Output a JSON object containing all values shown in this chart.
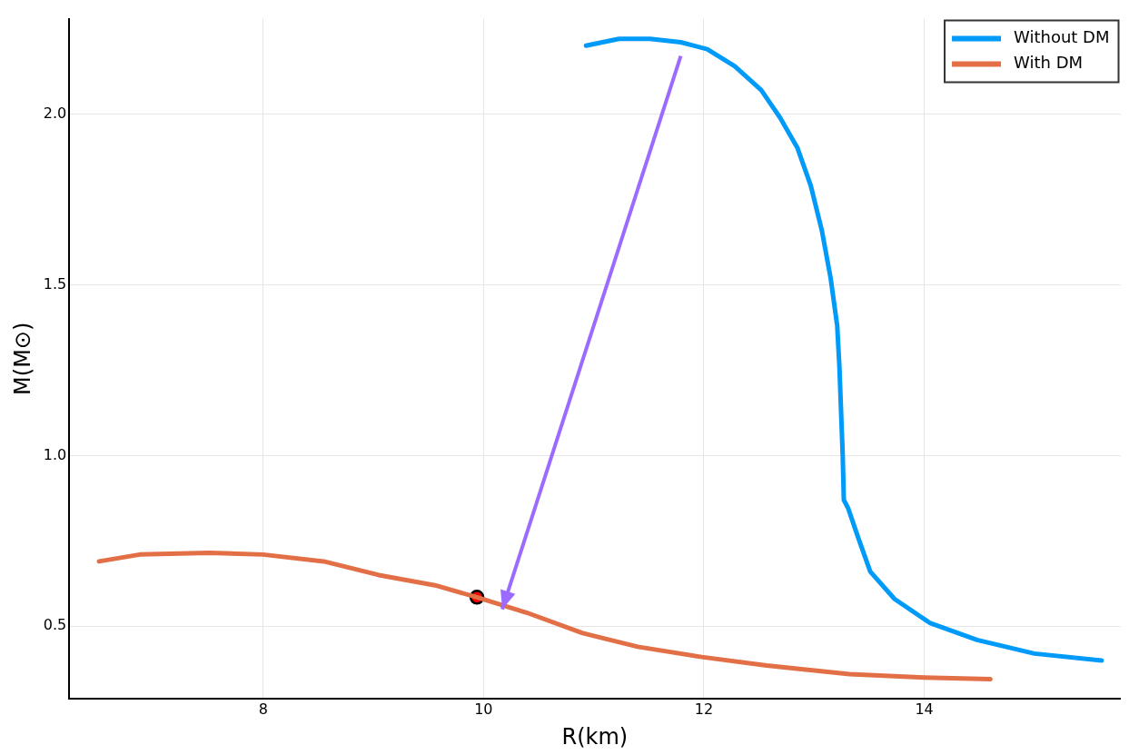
{
  "chart_data": {
    "type": "line",
    "xlabel": "R(km)",
    "ylabel": "M(M⊙)",
    "xlim": [
      6.24,
      15.78
    ],
    "ylim": [
      0.288,
      2.279
    ],
    "xticks": [
      8,
      10,
      12,
      14
    ],
    "yticks": [
      0.5,
      {
        "value": 1,
        "label": "1.0"
      },
      1.5,
      {
        "value": 2,
        "label": "2.0"
      }
    ],
    "grid": true,
    "legend": "top right",
    "marker": "none",
    "line_style": "solid",
    "series": [
      {
        "name": "Without DM",
        "color": "#009af9",
        "x": [
          10.93,
          11.23,
          11.51,
          11.79,
          12.03,
          12.28,
          12.52,
          12.69,
          12.85,
          12.97,
          13.07,
          13.15,
          13.21,
          13.23,
          13.26,
          13.27,
          13.31,
          13.4,
          13.51,
          13.73,
          14.05,
          14.48,
          15.0,
          15.61
        ],
        "values": [
          2.2,
          2.22,
          2.22,
          2.21,
          2.19,
          2.14,
          2.07,
          1.99,
          1.9,
          1.79,
          1.66,
          1.52,
          1.38,
          1.26,
          1.0,
          0.87,
          0.845,
          0.76,
          0.66,
          0.58,
          0.51,
          0.46,
          0.42,
          0.4
        ]
      },
      {
        "name": "With DM",
        "color": "#e26f46",
        "x": [
          6.51,
          6.88,
          7.51,
          8.0,
          8.55,
          9.05,
          9.56,
          9.94,
          10.39,
          10.9,
          11.4,
          11.98,
          12.57,
          13.32,
          14.0,
          14.6
        ],
        "values": [
          0.69,
          0.71,
          0.715,
          0.71,
          0.69,
          0.65,
          0.62,
          0.585,
          0.54,
          0.48,
          0.44,
          0.41,
          0.385,
          0.36,
          0.35,
          0.345
        ]
      },
      {
        "type": "scatter",
        "color": "#ff0000",
        "marker": "circle",
        "x": [
          9.94
        ],
        "values": [
          0.585
        ]
      }
    ]
  }
}
